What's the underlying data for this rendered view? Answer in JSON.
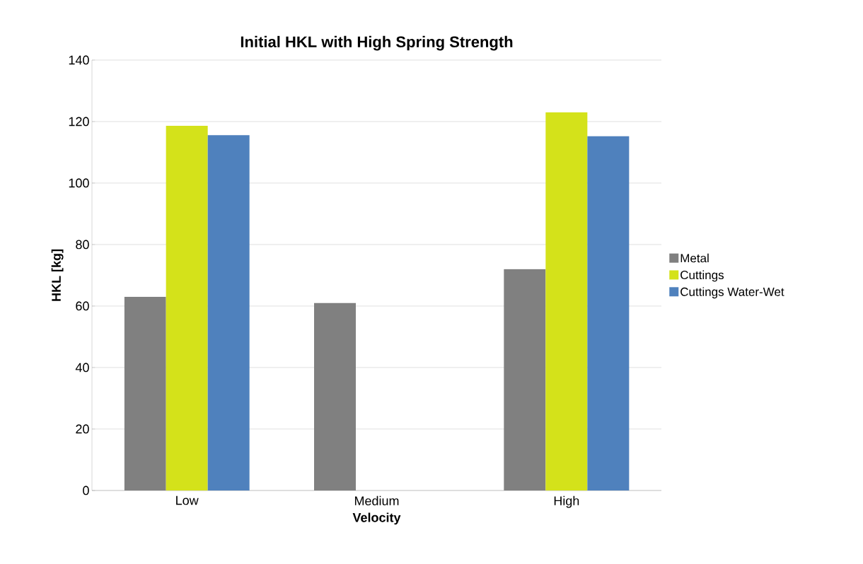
{
  "chart_data": {
    "type": "bar",
    "title": "Initial HKL with High Spring Strength",
    "xlabel": "Velocity",
    "ylabel": "HKL [kg]",
    "categories": [
      "Low",
      "Medium",
      "High"
    ],
    "series": [
      {
        "name": "Metal",
        "color": "#808080",
        "values": [
          63,
          61,
          72
        ]
      },
      {
        "name": "Cuttings",
        "color": "#d4e21a",
        "values": [
          118.6,
          null,
          123
        ]
      },
      {
        "name": "Cuttings Water-Wet",
        "color": "#4f81bd",
        "values": [
          115.6,
          null,
          115.2
        ]
      }
    ],
    "ylim": [
      0,
      140
    ],
    "yticks": [
      0,
      20,
      40,
      60,
      80,
      100,
      120,
      140
    ],
    "grid": "y",
    "legend": "right"
  }
}
